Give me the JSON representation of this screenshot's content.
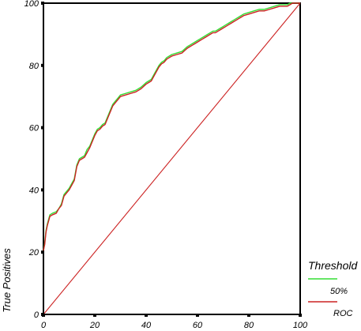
{
  "chart_data": {
    "type": "line",
    "xlabel": "",
    "ylabel": "True Positives",
    "xlim": [
      0,
      100
    ],
    "ylim": [
      0,
      100
    ],
    "x_ticks": [
      "0",
      "20",
      "40",
      "60",
      "80",
      "100"
    ],
    "y_ticks": [
      "0",
      "20",
      "40",
      "60",
      "80",
      "100"
    ],
    "legend": {
      "title": "Threshold",
      "placement": "bottom-right"
    },
    "series": [
      {
        "name": "50%",
        "color": "#33dd33",
        "x": [
          0,
          0.5,
          1,
          1.5,
          2.5,
          3.5,
          5,
          6,
          7,
          8,
          9,
          10,
          11,
          12,
          13,
          14,
          15,
          16,
          17,
          18,
          19,
          20,
          21,
          22,
          23,
          24,
          25,
          26,
          27,
          28,
          29,
          30,
          32,
          34,
          36,
          38,
          40,
          41,
          42,
          43,
          44,
          45,
          46,
          47,
          48,
          49,
          50,
          52,
          54,
          56,
          57,
          58,
          59,
          60,
          61,
          62,
          63,
          64,
          65,
          66,
          67,
          68,
          69,
          70,
          71,
          72,
          73,
          74,
          75,
          76,
          77,
          78,
          80,
          82,
          84,
          86,
          88,
          90,
          92,
          94,
          95,
          96,
          97,
          98,
          99,
          100
        ],
        "y": [
          20.5,
          23,
          27,
          29,
          32,
          32.5,
          33,
          34,
          35.5,
          38.5,
          39.5,
          40.5,
          42,
          43.5,
          48,
          50,
          50.5,
          51,
          53,
          54,
          56,
          58,
          59.5,
          60,
          61,
          61.5,
          63.5,
          65.5,
          67.5,
          68.5,
          69.5,
          70.5,
          71,
          71.5,
          72,
          73,
          74.5,
          75,
          75.5,
          77,
          78.5,
          80,
          81,
          81.5,
          82.5,
          83,
          83.5,
          84,
          84.5,
          86,
          86.5,
          87,
          87.5,
          88,
          88.5,
          89,
          89.5,
          90,
          90.5,
          91,
          91,
          91.5,
          92,
          92.5,
          93,
          93.5,
          94,
          94.5,
          95,
          95.5,
          96,
          96.5,
          97,
          97.5,
          98,
          98,
          98.5,
          99,
          99.5,
          99.5,
          99.5,
          100,
          100,
          100,
          100,
          100
        ]
      },
      {
        "name": "ROC",
        "color": "#cc2222",
        "x": [
          0,
          0.5,
          1,
          1.5,
          2.5,
          3.5,
          5,
          6,
          7,
          8,
          9,
          10,
          11,
          12,
          13,
          14,
          15,
          16,
          17,
          18,
          19,
          20,
          21,
          22,
          23,
          24,
          25,
          26,
          27,
          28,
          29,
          30,
          32,
          34,
          36,
          38,
          40,
          41,
          42,
          43,
          44,
          45,
          46,
          47,
          48,
          49,
          50,
          52,
          54,
          56,
          57,
          58,
          59,
          60,
          61,
          62,
          63,
          64,
          65,
          66,
          67,
          68,
          69,
          70,
          71,
          72,
          73,
          74,
          75,
          76,
          77,
          78,
          80,
          82,
          84,
          86,
          88,
          90,
          92,
          94,
          95,
          96,
          97,
          98,
          99,
          100
        ],
        "y": [
          20.5,
          22.5,
          26.5,
          28.5,
          31.5,
          32,
          32.5,
          34,
          35,
          38,
          39,
          40,
          41.5,
          43,
          47.5,
          49.5,
          50,
          50.5,
          52,
          53.5,
          55.5,
          57.5,
          59,
          59.5,
          60.5,
          61,
          63,
          65,
          67,
          68,
          69,
          70,
          70.5,
          71,
          71.5,
          72.5,
          74,
          74.5,
          75,
          76.5,
          78,
          79.5,
          80.5,
          81,
          82,
          82.5,
          83,
          83.5,
          84,
          85.5,
          86,
          86.5,
          87,
          87.5,
          88,
          88.5,
          89,
          89.5,
          90,
          90.5,
          90.5,
          91,
          91.5,
          92,
          92.5,
          93,
          93.5,
          94,
          94.5,
          95,
          95.5,
          96,
          96.5,
          97,
          97.5,
          97.5,
          98,
          98.5,
          99,
          99,
          99,
          99.5,
          100,
          100,
          100,
          100
        ]
      },
      {
        "name": "",
        "color": "#cc2222",
        "x": [
          0,
          100
        ],
        "y": [
          0,
          100
        ]
      }
    ]
  }
}
